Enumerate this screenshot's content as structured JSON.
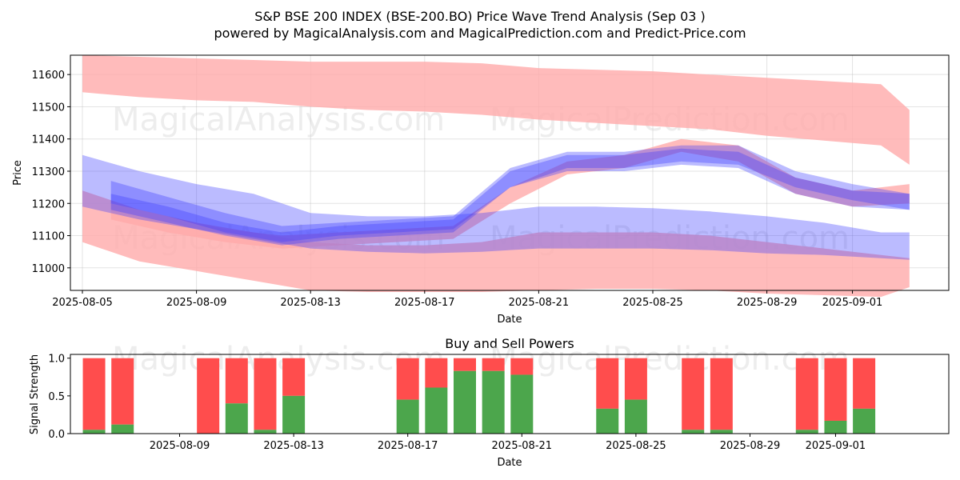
{
  "title_line1": "S&P BSE 200 INDEX (BSE-200.BO) Price Wave Trend Analysis (Sep 03 )",
  "title_line2": "powered by MagicalAnalysis.com and MagicalPrediction.com and Predict-Price.com",
  "watermarks": [
    "MagicalAnalysis.com",
    "MagicalPrediction.com"
  ],
  "colors": {
    "sell": "#ff4d4d",
    "buy": "#4ca64c",
    "red_band": "#ffaaaa",
    "blue_band": "#3b3bff"
  },
  "chart_data": [
    {
      "type": "area",
      "title": "",
      "xlabel": "Date",
      "ylabel": "Price",
      "xlim": [
        "2025-08-05",
        "2025-09-03"
      ],
      "ylim": [
        10930,
        11660
      ],
      "x_ticks": [
        "2025-08-05",
        "2025-08-09",
        "2025-08-13",
        "2025-08-17",
        "2025-08-21",
        "2025-08-25",
        "2025-08-29",
        "2025-09-01"
      ],
      "y_ticks": [
        11000,
        11100,
        11200,
        11300,
        11400,
        11500,
        11600
      ],
      "grid": true,
      "series": [
        {
          "color": "red",
          "x": [
            "2025-08-05",
            "2025-08-07",
            "2025-08-09",
            "2025-08-11",
            "2025-08-13",
            "2025-08-15",
            "2025-08-17",
            "2025-08-19",
            "2025-08-21",
            "2025-08-23",
            "2025-08-25",
            "2025-08-27",
            "2025-08-29",
            "2025-08-31",
            "2025-09-02",
            "2025-09-03"
          ],
          "upper": [
            11660,
            11655,
            11650,
            11645,
            11640,
            11640,
            11640,
            11635,
            11620,
            11615,
            11610,
            11600,
            11590,
            11580,
            11570,
            11490
          ],
          "lower": [
            11545,
            11530,
            11520,
            11515,
            11500,
            11490,
            11485,
            11475,
            11460,
            11450,
            11440,
            11430,
            11410,
            11395,
            11380,
            11320
          ]
        },
        {
          "color": "red",
          "x": [
            "2025-08-05",
            "2025-08-07",
            "2025-08-09",
            "2025-08-11",
            "2025-08-13",
            "2025-08-15",
            "2025-08-17",
            "2025-08-19",
            "2025-08-21",
            "2025-08-23",
            "2025-08-25",
            "2025-08-27",
            "2025-08-29",
            "2025-08-31",
            "2025-09-02",
            "2025-09-03"
          ],
          "upper": [
            11240,
            11180,
            11140,
            11110,
            11080,
            11070,
            11070,
            11080,
            11110,
            11110,
            11110,
            11100,
            11080,
            11060,
            11040,
            11030
          ],
          "lower": [
            11080,
            11020,
            10990,
            10960,
            10930,
            10925,
            10925,
            10925,
            10930,
            10935,
            10935,
            10930,
            10920,
            10915,
            10910,
            10940
          ]
        },
        {
          "color": "red",
          "x": [
            "2025-08-06",
            "2025-08-08",
            "2025-08-10",
            "2025-08-12",
            "2025-08-14",
            "2025-08-16",
            "2025-08-18",
            "2025-08-20",
            "2025-08-22",
            "2025-08-24",
            "2025-08-26",
            "2025-08-28",
            "2025-08-30",
            "2025-09-01",
            "2025-09-03"
          ],
          "upper": [
            11200,
            11160,
            11120,
            11100,
            11110,
            11120,
            11130,
            11250,
            11330,
            11350,
            11400,
            11380,
            11280,
            11240,
            11260
          ],
          "lower": [
            11150,
            11110,
            11080,
            11060,
            11070,
            11080,
            11090,
            11200,
            11290,
            11310,
            11360,
            11330,
            11230,
            11190,
            11200
          ]
        },
        {
          "color": "blue",
          "x": [
            "2025-08-05",
            "2025-08-07",
            "2025-08-09",
            "2025-08-11",
            "2025-08-13",
            "2025-08-15",
            "2025-08-17",
            "2025-08-19",
            "2025-08-21",
            "2025-08-23",
            "2025-08-25",
            "2025-08-27",
            "2025-08-29",
            "2025-08-31",
            "2025-09-02",
            "2025-09-03"
          ],
          "upper": [
            11350,
            11300,
            11260,
            11230,
            11170,
            11160,
            11160,
            11170,
            11190,
            11190,
            11185,
            11175,
            11160,
            11140,
            11110,
            11110
          ],
          "lower": [
            11190,
            11150,
            11120,
            11090,
            11060,
            11050,
            11045,
            11050,
            11060,
            11060,
            11060,
            11055,
            11045,
            11040,
            11030,
            11025
          ]
        },
        {
          "color": "blue",
          "x": [
            "2025-08-06",
            "2025-08-08",
            "2025-08-10",
            "2025-08-12",
            "2025-08-14",
            "2025-08-16",
            "2025-08-18",
            "2025-08-20",
            "2025-08-22",
            "2025-08-24",
            "2025-08-26",
            "2025-08-28",
            "2025-08-30",
            "2025-09-01",
            "2025-09-03"
          ],
          "upper": [
            11270,
            11220,
            11170,
            11130,
            11140,
            11150,
            11160,
            11310,
            11360,
            11360,
            11380,
            11380,
            11300,
            11260,
            11230
          ],
          "lower": [
            11200,
            11160,
            11110,
            11080,
            11100,
            11110,
            11120,
            11250,
            11310,
            11310,
            11330,
            11320,
            11250,
            11210,
            11180
          ]
        },
        {
          "color": "blue",
          "x": [
            "2025-08-06",
            "2025-08-08",
            "2025-08-10",
            "2025-08-12",
            "2025-08-14",
            "2025-08-16",
            "2025-08-18",
            "2025-08-20",
            "2025-08-22",
            "2025-08-24",
            "2025-08-26",
            "2025-08-28",
            "2025-08-30",
            "2025-09-01",
            "2025-09-03"
          ],
          "upper": [
            11230,
            11190,
            11140,
            11110,
            11130,
            11140,
            11150,
            11300,
            11350,
            11350,
            11370,
            11360,
            11280,
            11240,
            11230
          ],
          "lower": [
            11180,
            11140,
            11100,
            11070,
            11090,
            11100,
            11110,
            11250,
            11300,
            11300,
            11320,
            11310,
            11230,
            11190,
            11180
          ]
        }
      ]
    },
    {
      "type": "bar",
      "title": "Buy and Sell Powers",
      "xlabel": "Date",
      "ylabel": "Signal Strength",
      "ylim": [
        0,
        1.05
      ],
      "y_ticks": [
        0.0,
        0.5,
        1.0
      ],
      "x_ticks": [
        "2025-08-09",
        "2025-08-13",
        "2025-08-17",
        "2025-08-21",
        "2025-08-25",
        "2025-08-29",
        "2025-09-01"
      ],
      "categories": [
        "2025-08-06",
        "2025-08-07",
        "2025-08-10",
        "2025-08-11",
        "2025-08-12",
        "2025-08-13",
        "2025-08-17",
        "2025-08-18",
        "2025-08-19",
        "2025-08-20",
        "2025-08-21",
        "2025-08-24",
        "2025-08-25",
        "2025-08-27",
        "2025-08-28",
        "2025-08-31",
        "2025-09-01",
        "2025-09-02"
      ],
      "series": [
        {
          "name": "Buy",
          "values": [
            0.05,
            0.12,
            0.0,
            0.4,
            0.05,
            0.5,
            0.45,
            0.61,
            0.83,
            0.83,
            0.78,
            0.33,
            0.45,
            0.05,
            0.05,
            0.05,
            0.17,
            0.33
          ]
        },
        {
          "name": "Sell",
          "values": [
            0.95,
            0.88,
            1.0,
            0.6,
            0.95,
            0.5,
            0.55,
            0.39,
            0.17,
            0.17,
            0.22,
            0.67,
            0.55,
            0.95,
            0.95,
            0.95,
            0.83,
            0.67
          ]
        }
      ]
    }
  ]
}
